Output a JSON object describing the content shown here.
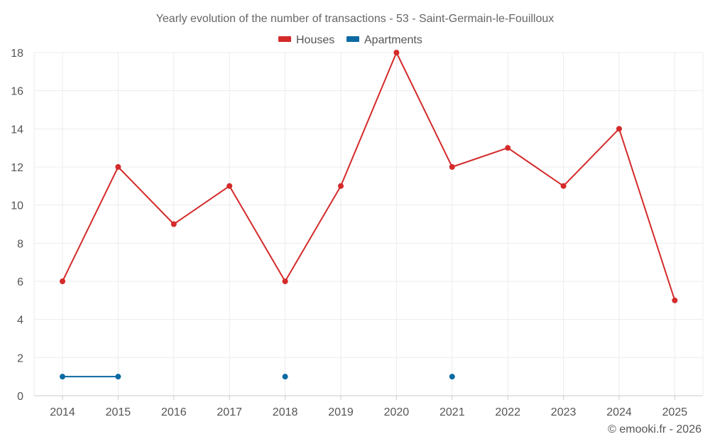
{
  "chart_data": {
    "type": "line",
    "title": "Yearly evolution of the number of transactions - 53 - Saint-Germain-le-Fouilloux",
    "categories": [
      "2014",
      "2015",
      "2016",
      "2017",
      "2018",
      "2019",
      "2020",
      "2021",
      "2022",
      "2023",
      "2024",
      "2025"
    ],
    "series": [
      {
        "name": "Houses",
        "color": "#d42a2a",
        "values": [
          6,
          12,
          9,
          11,
          6,
          11,
          18,
          12,
          13,
          11,
          14,
          5
        ]
      },
      {
        "name": "Apartments",
        "color": "#0b6aa2",
        "values": [
          1,
          1,
          null,
          null,
          1,
          null,
          null,
          1,
          null,
          null,
          null,
          null
        ]
      }
    ],
    "ylim": [
      0,
      18
    ],
    "yticks": [
      0,
      2,
      4,
      6,
      8,
      10,
      12,
      14,
      16,
      18
    ],
    "xlabel": "",
    "ylabel": "",
    "grid": true,
    "legend_position": "top-center"
  },
  "credit": "© emooki.fr - 2026"
}
